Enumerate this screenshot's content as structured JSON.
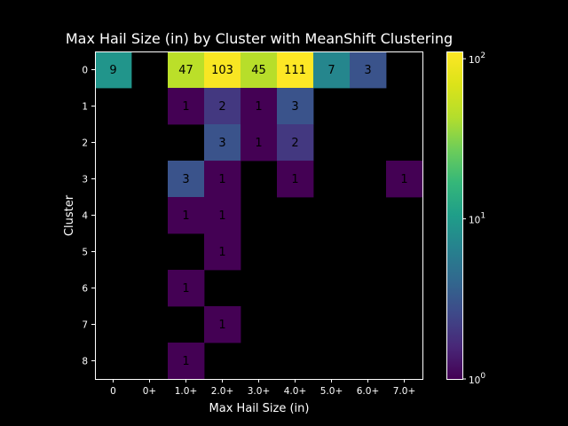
{
  "chart_data": {
    "type": "heatmap",
    "title": "Max Hail Size (in) by Cluster with MeanShift Clustering",
    "xlabel": "Max Hail Size (in)",
    "ylabel": "Cluster",
    "x_categories": [
      "0",
      "0+",
      "1.0+",
      "2.0+",
      "3.0+",
      "4.0+",
      "5.0+",
      "6.0+",
      "7.0+"
    ],
    "y_categories": [
      "0",
      "1",
      "2",
      "3",
      "4",
      "5",
      "6",
      "7",
      "8"
    ],
    "values": [
      [
        9,
        null,
        47,
        103,
        45,
        111,
        7,
        3,
        null
      ],
      [
        null,
        null,
        1,
        2,
        1,
        3,
        null,
        null,
        null
      ],
      [
        null,
        null,
        null,
        3,
        1,
        2,
        null,
        null,
        null
      ],
      [
        null,
        null,
        3,
        1,
        null,
        1,
        null,
        null,
        1
      ],
      [
        null,
        null,
        1,
        1,
        null,
        null,
        null,
        null,
        null
      ],
      [
        null,
        null,
        null,
        1,
        null,
        null,
        null,
        null,
        null
      ],
      [
        null,
        null,
        1,
        null,
        null,
        null,
        null,
        null,
        null
      ],
      [
        null,
        null,
        null,
        1,
        null,
        null,
        null,
        null,
        null
      ],
      [
        null,
        null,
        1,
        null,
        null,
        null,
        null,
        null,
        null
      ]
    ],
    "color_scale": "log",
    "colormap": "viridis",
    "color_range": [
      1,
      111
    ],
    "colorbar_ticks": [
      {
        "value": 1,
        "base": "10",
        "exp": "0"
      },
      {
        "value": 10,
        "base": "10",
        "exp": "1"
      },
      {
        "value": 100,
        "base": "10",
        "exp": "2"
      }
    ],
    "background_color": "#000000",
    "text_color": "#ffffff"
  }
}
